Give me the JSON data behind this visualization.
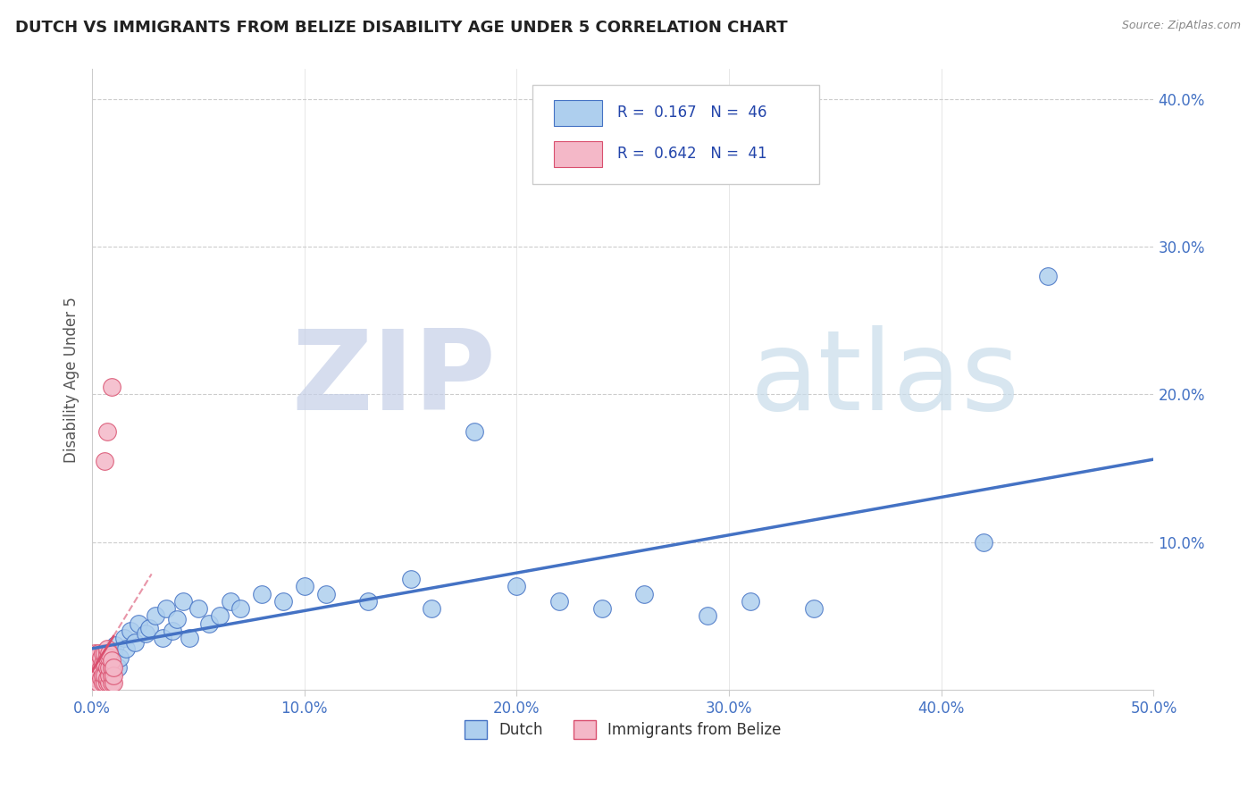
{
  "title": "DUTCH VS IMMIGRANTS FROM BELIZE DISABILITY AGE UNDER 5 CORRELATION CHART",
  "source": "Source: ZipAtlas.com",
  "ylabel": "Disability Age Under 5",
  "xlim": [
    0.0,
    0.5
  ],
  "ylim": [
    0.0,
    0.42
  ],
  "xtick_labels": [
    "0.0%",
    "10.0%",
    "20.0%",
    "30.0%",
    "40.0%",
    "50.0%"
  ],
  "xtick_vals": [
    0.0,
    0.1,
    0.2,
    0.3,
    0.4,
    0.5
  ],
  "ytick_labels": [
    "10.0%",
    "20.0%",
    "30.0%",
    "40.0%"
  ],
  "ytick_vals": [
    0.1,
    0.2,
    0.3,
    0.4
  ],
  "legend_dutch_r": "0.167",
  "legend_dutch_n": "46",
  "legend_belize_r": "0.642",
  "legend_belize_n": "41",
  "dutch_color": "#aecfee",
  "belize_color": "#f4b8c8",
  "dutch_line_color": "#4472c4",
  "belize_line_color": "#d94f6e",
  "dutch_scatter_x": [
    0.003,
    0.005,
    0.006,
    0.007,
    0.008,
    0.009,
    0.01,
    0.011,
    0.012,
    0.013,
    0.015,
    0.016,
    0.018,
    0.02,
    0.022,
    0.025,
    0.027,
    0.03,
    0.033,
    0.035,
    0.038,
    0.04,
    0.043,
    0.046,
    0.05,
    0.055,
    0.06,
    0.065,
    0.07,
    0.08,
    0.09,
    0.1,
    0.11,
    0.13,
    0.15,
    0.16,
    0.18,
    0.2,
    0.22,
    0.24,
    0.26,
    0.29,
    0.31,
    0.34,
    0.42,
    0.45
  ],
  "dutch_scatter_y": [
    0.01,
    0.008,
    0.015,
    0.02,
    0.012,
    0.018,
    0.025,
    0.03,
    0.015,
    0.022,
    0.035,
    0.028,
    0.04,
    0.032,
    0.045,
    0.038,
    0.042,
    0.05,
    0.035,
    0.055,
    0.04,
    0.048,
    0.06,
    0.035,
    0.055,
    0.045,
    0.05,
    0.06,
    0.055,
    0.065,
    0.06,
    0.07,
    0.065,
    0.06,
    0.075,
    0.055,
    0.175,
    0.07,
    0.06,
    0.055,
    0.065,
    0.05,
    0.06,
    0.055,
    0.1,
    0.28
  ],
  "belize_scatter_x": [
    0.001,
    0.001,
    0.002,
    0.002,
    0.002,
    0.003,
    0.003,
    0.003,
    0.003,
    0.004,
    0.004,
    0.004,
    0.005,
    0.005,
    0.005,
    0.005,
    0.006,
    0.006,
    0.006,
    0.006,
    0.006,
    0.007,
    0.007,
    0.007,
    0.007,
    0.007,
    0.007,
    0.007,
    0.008,
    0.008,
    0.008,
    0.008,
    0.008,
    0.009,
    0.009,
    0.009,
    0.009,
    0.009,
    0.01,
    0.01,
    0.01
  ],
  "belize_scatter_y": [
    0.01,
    0.025,
    0.008,
    0.015,
    0.022,
    0.005,
    0.012,
    0.018,
    0.025,
    0.008,
    0.015,
    0.022,
    0.005,
    0.01,
    0.018,
    0.025,
    0.005,
    0.01,
    0.018,
    0.025,
    0.155,
    0.005,
    0.008,
    0.015,
    0.022,
    0.025,
    0.028,
    0.175,
    0.005,
    0.01,
    0.015,
    0.022,
    0.025,
    0.005,
    0.01,
    0.015,
    0.02,
    0.205,
    0.005,
    0.01,
    0.015
  ]
}
